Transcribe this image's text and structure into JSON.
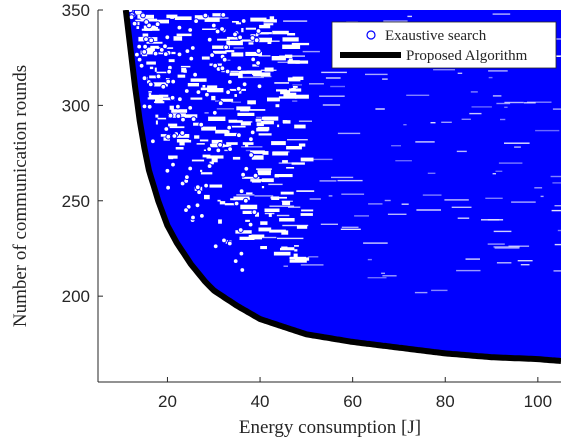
{
  "chart_data": {
    "type": "scatter",
    "xlabel": "Energy consumption [J]",
    "ylabel": "Number of communication rounds",
    "xlim": [
      5,
      105
    ],
    "ylim": [
      155,
      350
    ],
    "xticks": [
      20,
      40,
      60,
      80,
      100
    ],
    "yticks": [
      200,
      250,
      300,
      350
    ],
    "grid": false,
    "legend_position": "top-right",
    "series": [
      {
        "name": "Exaustive search",
        "kind": "scatter",
        "marker": "open-circle",
        "color": "#0000ff",
        "region": "all points above the proposed-algorithm frontier, filling the plot up to 350 rounds"
      },
      {
        "name": "Proposed Algorithm",
        "kind": "line",
        "color": "#000000",
        "x": [
          11,
          12,
          13,
          14,
          15,
          16,
          18,
          20,
          22,
          25,
          28,
          30,
          35,
          40,
          45,
          50,
          55,
          60,
          70,
          80,
          90,
          100,
          105
        ],
        "y": [
          350,
          330,
          310,
          292,
          278,
          266,
          250,
          237,
          228,
          217,
          208,
          203,
          195,
          188,
          184,
          180,
          178,
          176,
          173,
          170,
          168,
          167,
          166
        ]
      }
    ]
  }
}
